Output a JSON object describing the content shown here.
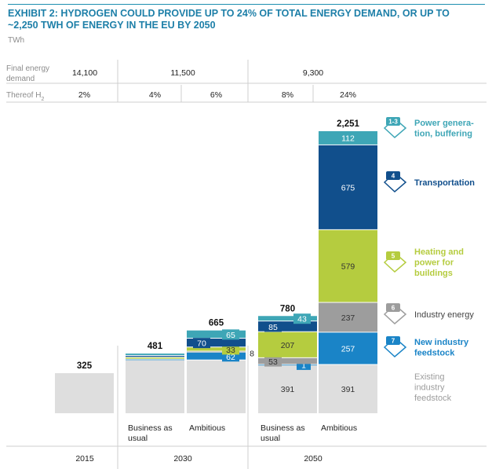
{
  "header": {
    "title_line1": "EXHIBIT 2: HYDROGEN COULD PROVIDE UP TO 24% OF TOTAL ENERGY DEMAND, OR UP TO",
    "title_line2": "~2,250 TWH OF ENERGY IN THE EU BY 2050",
    "unit": "TWh"
  },
  "table": {
    "row1_label": [
      "Final energy",
      "demand"
    ],
    "row2_label": "Thereof H",
    "row2_label_sub": "2",
    "demand": [
      "14,100",
      "11,500",
      "9,300"
    ],
    "share": [
      "2%",
      "4%",
      "6%",
      "8%",
      "24%"
    ]
  },
  "chart_data": {
    "type": "bar",
    "stacked": true,
    "title": "HYDROGEN COULD PROVIDE UP TO 24% OF TOTAL ENERGY DEMAND, OR UP TO ~2,250 TWH OF ENERGY IN THE EU BY 2050",
    "ylabel": "TWh",
    "ylim": [
      0,
      2300
    ],
    "bars": [
      {
        "category": "",
        "group": "2015",
        "total": "325",
        "segments": [
          {
            "series": "Existing industry feedstock",
            "value": 325
          }
        ]
      },
      {
        "category": "Business as usual",
        "group": "2030",
        "total": "481",
        "segments": [
          {
            "series": "Existing industry feedstock",
            "value": 427
          },
          {
            "series": "New industry feedstock",
            "value": 7
          },
          {
            "series": "Heating and power for buildings",
            "value": 15
          },
          {
            "series": "Transportation",
            "value": 14
          },
          {
            "series": "Power generation, buffering",
            "value": 18
          }
        ]
      },
      {
        "category": "Ambitious",
        "group": "2030",
        "total": "665",
        "segments": [
          {
            "series": "Existing industry feedstock",
            "value": 427
          },
          {
            "series": "New industry feedstock",
            "value": 62,
            "label": "62"
          },
          {
            "series": "Industry energy",
            "value": 8,
            "label": "8",
            "outside": true
          },
          {
            "series": "Heating and power for buildings",
            "value": 33,
            "label": "33"
          },
          {
            "series": "Transportation",
            "value": 70,
            "label": "70"
          },
          {
            "series": "Power generation, buffering",
            "value": 65,
            "label": "65"
          }
        ]
      },
      {
        "category": "Business as usual",
        "group": "2050",
        "total": "780",
        "segments": [
          {
            "series": "Existing industry feedstock",
            "value": 391,
            "label": "391"
          },
          {
            "series": "New industry feedstock",
            "value": 1,
            "label": "1"
          },
          {
            "series": "Industry energy",
            "value": 53,
            "label": "53"
          },
          {
            "series": "Heating and power for buildings",
            "value": 207,
            "label": "207"
          },
          {
            "series": "Transportation",
            "value": 85,
            "label": "85"
          },
          {
            "series": "Power generation, buffering",
            "value": 43,
            "label": "43"
          }
        ]
      },
      {
        "category": "Ambitious",
        "group": "2050",
        "total": "2,251",
        "segments": [
          {
            "series": "Existing industry feedstock",
            "value": 391,
            "label": "391"
          },
          {
            "series": "New industry feedstock",
            "value": 257,
            "label": "257"
          },
          {
            "series": "Industry energy",
            "value": 237,
            "label": "237"
          },
          {
            "series": "Heating and power for buildings",
            "value": 579,
            "label": "579"
          },
          {
            "series": "Transportation",
            "value": 675,
            "label": "675"
          },
          {
            "series": "Power generation, buffering",
            "value": 112,
            "label": "112"
          }
        ]
      }
    ],
    "groups": [
      "2015",
      "2030",
      "2050"
    ],
    "legend": [
      {
        "series": "Power generation, buffering",
        "badge": "1-3",
        "lines": [
          "Power genera-",
          "tion, buffering"
        ],
        "color": "#3ea6b6",
        "icon": "power-plant-icon"
      },
      {
        "series": "Transportation",
        "badge": "4",
        "lines": [
          "Transportation"
        ],
        "color": "#114f8c",
        "icon": "car-icon"
      },
      {
        "series": "Heating and power for buildings",
        "badge": "5",
        "lines": [
          "Heating and",
          "power for",
          "buildings"
        ],
        "color": "#b5cc3f",
        "icon": "building-icon"
      },
      {
        "series": "Industry energy",
        "badge": "6",
        "lines": [
          "Industry energy"
        ],
        "color": "#9d9d9d",
        "icon": "factory-icon"
      },
      {
        "series": "New industry feedstock",
        "badge": "7",
        "lines": [
          "New industry",
          "feedstock"
        ],
        "color": "#1a84c7",
        "icon": "industry-icon"
      },
      {
        "series": "Existing industry feedstock",
        "badge": "",
        "lines": [
          "Existing",
          "industry",
          "feedstock"
        ],
        "color": "#dcdcdc"
      }
    ],
    "colors": {
      "Existing industry feedstock": "#dedede",
      "New industry feedstock": "#1a84c7",
      "Industry energy": "#9d9d9d",
      "Heating and power for buildings": "#b5cc3f",
      "Transportation": "#114f8c",
      "Power generation, buffering": "#3ea6b6"
    }
  }
}
